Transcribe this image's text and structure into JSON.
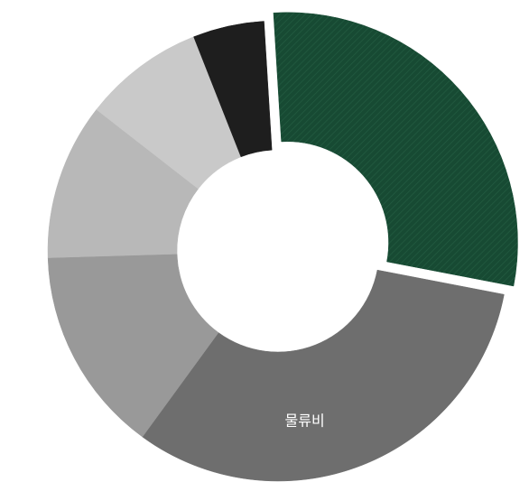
{
  "chart_data": {
    "type": "pie",
    "variant": "donut",
    "title": "",
    "legend": "none",
    "highlighted_slice": 0,
    "slices": [
      {
        "label": "",
        "value": 29,
        "color": "#174a33",
        "pattern": "diagonal-hatch",
        "exploded": true
      },
      {
        "label": "물류비",
        "value": 32,
        "color": "#6e6e6e"
      },
      {
        "label": "",
        "value": 14.5,
        "color": "#999999"
      },
      {
        "label": "",
        "value": 11,
        "color": "#b8b8b8"
      },
      {
        "label": "",
        "value": 8.5,
        "color": "#c9c9c9"
      },
      {
        "label": "",
        "value": 5,
        "color": "#1e1e1e"
      }
    ]
  }
}
